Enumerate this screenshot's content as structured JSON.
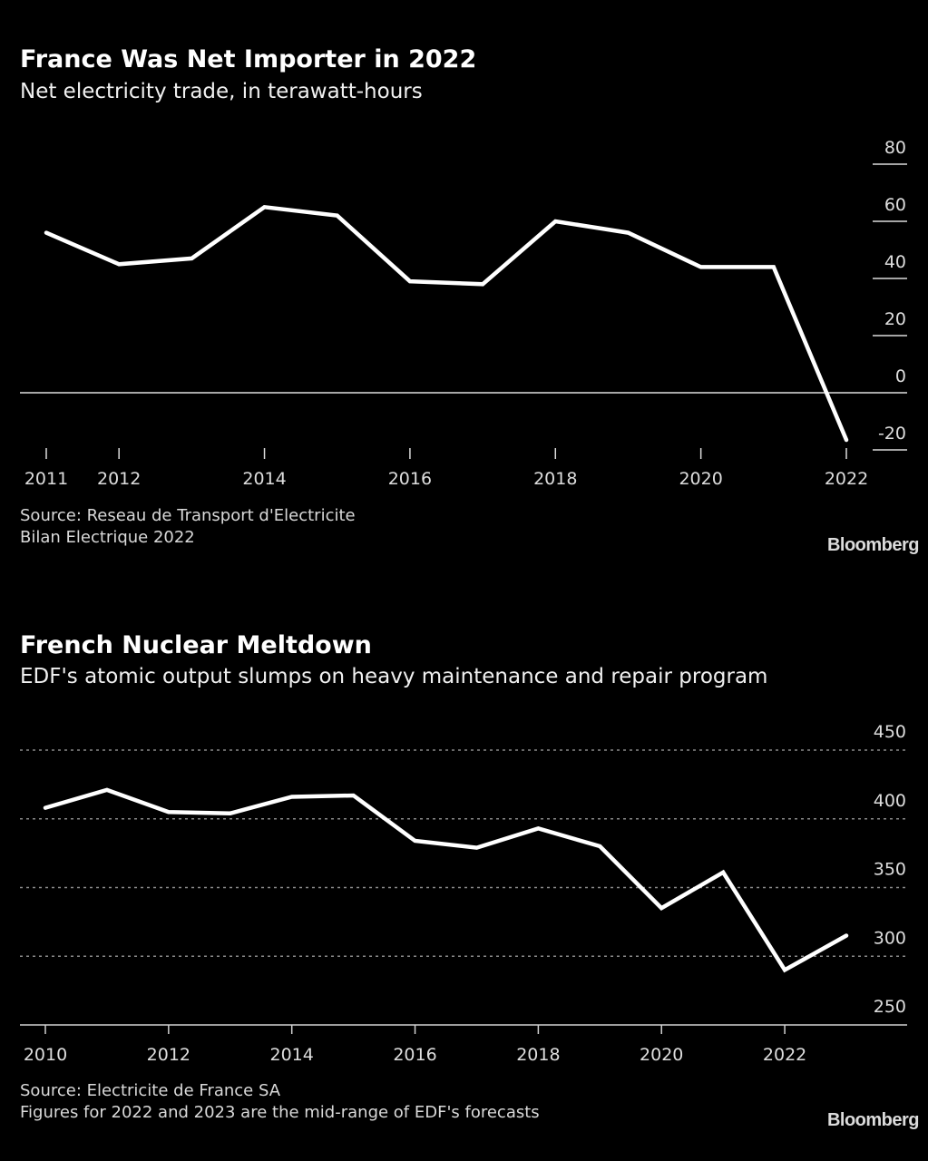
{
  "chart_data": [
    {
      "type": "line",
      "title": "France Was Net Importer in 2022",
      "subtitle": "Net electricity trade, in terawatt-hours",
      "xlabel": "",
      "ylabel": "",
      "x": [
        2011,
        2012,
        2013,
        2014,
        2015,
        2016,
        2017,
        2018,
        2019,
        2020,
        2021,
        2022
      ],
      "series": [
        {
          "name": "Net electricity trade (TWh)",
          "values": [
            56,
            45,
            47,
            65,
            62,
            39,
            38,
            60,
            56,
            44,
            44,
            -16.5
          ]
        }
      ],
      "x_tick_labels": [
        "2011",
        "2012",
        "2014",
        "2016",
        "2018",
        "2020",
        "2022"
      ],
      "y_tick_labels": [
        "80",
        "60",
        "40",
        "20",
        "0",
        "-20"
      ],
      "y_ticks": [
        80,
        60,
        40,
        20,
        0,
        -20
      ],
      "ylim": [
        -20,
        80
      ],
      "xlim": [
        2011,
        2022
      ],
      "grid": false,
      "zero_line": true,
      "source": [
        "Source: Reseau de Transport d'Electricite",
        "Bilan Electrique 2022"
      ],
      "brand": "Bloomberg",
      "colors": {
        "line": "#ffffff",
        "background": "#000000"
      }
    },
    {
      "type": "line",
      "title": "French Nuclear Meltdown",
      "subtitle": "EDF's atomic output slumps on heavy maintenance and repair program",
      "xlabel": "",
      "ylabel": "",
      "x": [
        2010,
        2011,
        2012,
        2013,
        2014,
        2015,
        2016,
        2017,
        2018,
        2019,
        2020,
        2021,
        2022,
        2023
      ],
      "series": [
        {
          "name": "EDF nuclear output (TWh)",
          "values": [
            408,
            421,
            405,
            404,
            416,
            417,
            384,
            379,
            393,
            380,
            335,
            361,
            290,
            315
          ]
        }
      ],
      "x_tick_labels": [
        "2010",
        "2012",
        "2014",
        "2016",
        "2018",
        "2020",
        "2022"
      ],
      "y_tick_labels": [
        "450",
        "400",
        "350",
        "300",
        "250"
      ],
      "y_ticks": [
        450,
        400,
        350,
        300,
        250
      ],
      "ylim": [
        250,
        450
      ],
      "xlim": [
        2010,
        2023
      ],
      "grid": true,
      "source": [
        "Source: Electricite de France SA",
        "Figures for 2022 and 2023 are the mid-range of EDF's forecasts"
      ],
      "brand": "Bloomberg",
      "colors": {
        "line": "#ffffff",
        "background": "#000000"
      }
    }
  ]
}
